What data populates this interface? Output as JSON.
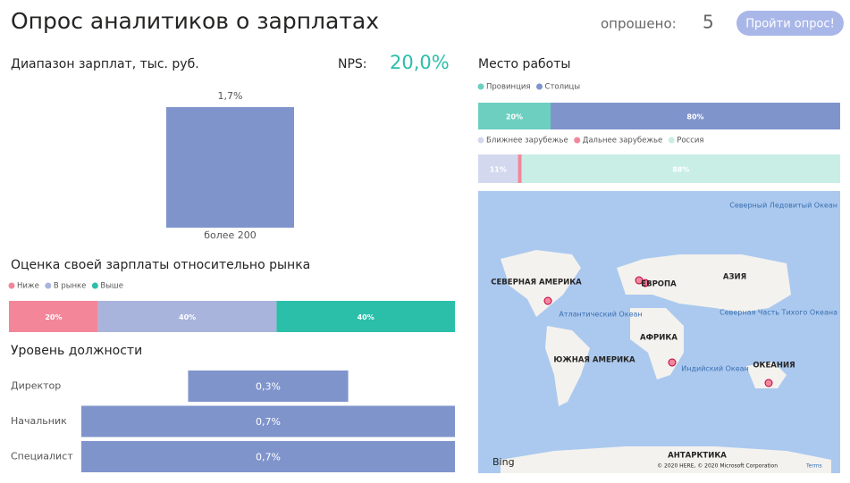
{
  "header": {
    "title": "Опрос аналитиков о зарплатах",
    "surveyed_label": "опрошено:",
    "surveyed_count": "5",
    "button": "Пройти опрос!",
    "nps_label": "NPS:",
    "nps_value": "20,0%"
  },
  "chart_data": [
    {
      "type": "bar",
      "title": "Диапазон зарплат, тыс. руб.",
      "categories": [
        "более 200"
      ],
      "values": [
        1.7
      ],
      "value_labels": [
        "1,7%"
      ],
      "color": "#8094cc"
    },
    {
      "type": "stacked_bar",
      "title": "Оценка своей зарплаты относительно рынка",
      "series": [
        {
          "name": "Ниже",
          "color": "#f4869a",
          "values": [
            20
          ],
          "value_labels": [
            "20%"
          ]
        },
        {
          "name": "В рынке",
          "color": "#a9b4dc",
          "values": [
            40
          ],
          "value_labels": [
            "40%"
          ]
        },
        {
          "name": "Выше",
          "color": "#2bbfaa",
          "values": [
            40
          ],
          "value_labels": [
            "40%"
          ]
        }
      ]
    },
    {
      "type": "stacked_bar",
      "title": "Место работы",
      "series": [
        {
          "name": "Провинция",
          "color": "#6dcfc0",
          "values": [
            20
          ],
          "value_labels": [
            "20%"
          ]
        },
        {
          "name": "Столицы",
          "color": "#8094cc",
          "values": [
            80
          ],
          "value_labels": [
            "80%"
          ]
        }
      ]
    },
    {
      "type": "stacked_bar",
      "series": [
        {
          "name": "Ближнее зарубежье",
          "color": "#d4d8ee",
          "values": [
            11
          ],
          "value_labels": [
            "11%"
          ]
        },
        {
          "name": "Дальнее зарубежье",
          "color": "#f4869a",
          "values": [
            1
          ]
        },
        {
          "name": "Россия",
          "color": "#c8eee6",
          "values": [
            88
          ],
          "value_labels": [
            "88%"
          ]
        }
      ]
    },
    {
      "type": "funnel",
      "title": "Уровень должности",
      "categories": [
        "Директор",
        "Начальник",
        "Специалист"
      ],
      "values": [
        0.3,
        0.7,
        0.7
      ],
      "value_labels": [
        "0,3%",
        "0,7%",
        "0,7%"
      ],
      "color": "#8094cc"
    }
  ],
  "map": {
    "labels": [
      "СЕВЕРНАЯ АМЕРИКА",
      "ЕВРОПА",
      "АЗИЯ",
      "АФРИКА",
      "ЮЖНАЯ АМЕРИКА",
      "ОКЕАНИЯ",
      "АНТАРКТИКА",
      "Атлантический Океан",
      "Индийский Океан",
      "Северный Ледовитый Океан",
      "Северная Часть Тихого Океана"
    ],
    "logo": "Bing",
    "copyright": "© 2020 HERE, © 2020 Microsoft Corporation",
    "terms": "Terms"
  }
}
